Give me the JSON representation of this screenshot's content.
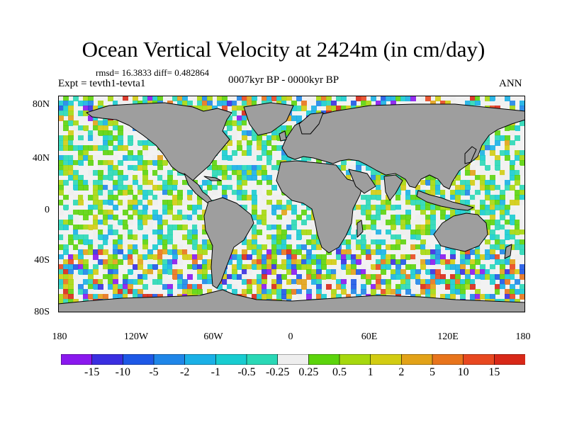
{
  "title": "Ocean Vertical Velocity at 2424m (in cm/day)",
  "stats": "rmsd= 16.3833 diff= 0.482864",
  "experiment": "Expt = tevth1-tevta1",
  "period": "0007kyr BP - 0000kyr BP",
  "season": "ANN",
  "lat_labels": [
    "80N",
    "40N",
    "0",
    "40S",
    "80S"
  ],
  "lon_labels": [
    "180",
    "120W",
    "60W",
    "0",
    "60E",
    "120E",
    "180"
  ],
  "colorbar": {
    "labels": [
      "-15",
      "-10",
      "-5",
      "-2",
      "-1",
      "-0.5",
      "-0.25",
      "0.25",
      "0.5",
      "1",
      "2",
      "5",
      "10",
      "15"
    ],
    "colors": [
      "#8a18ee",
      "#3a2ee0",
      "#1e58e6",
      "#1f86e8",
      "#1ab0e6",
      "#18ccd0",
      "#2ad8b6",
      "#eeeeee",
      "#5cd40c",
      "#a6d80e",
      "#d2cc12",
      "#e2a218",
      "#e8741c",
      "#e84820",
      "#d82818"
    ]
  },
  "land_color": "#9e9e9e"
}
